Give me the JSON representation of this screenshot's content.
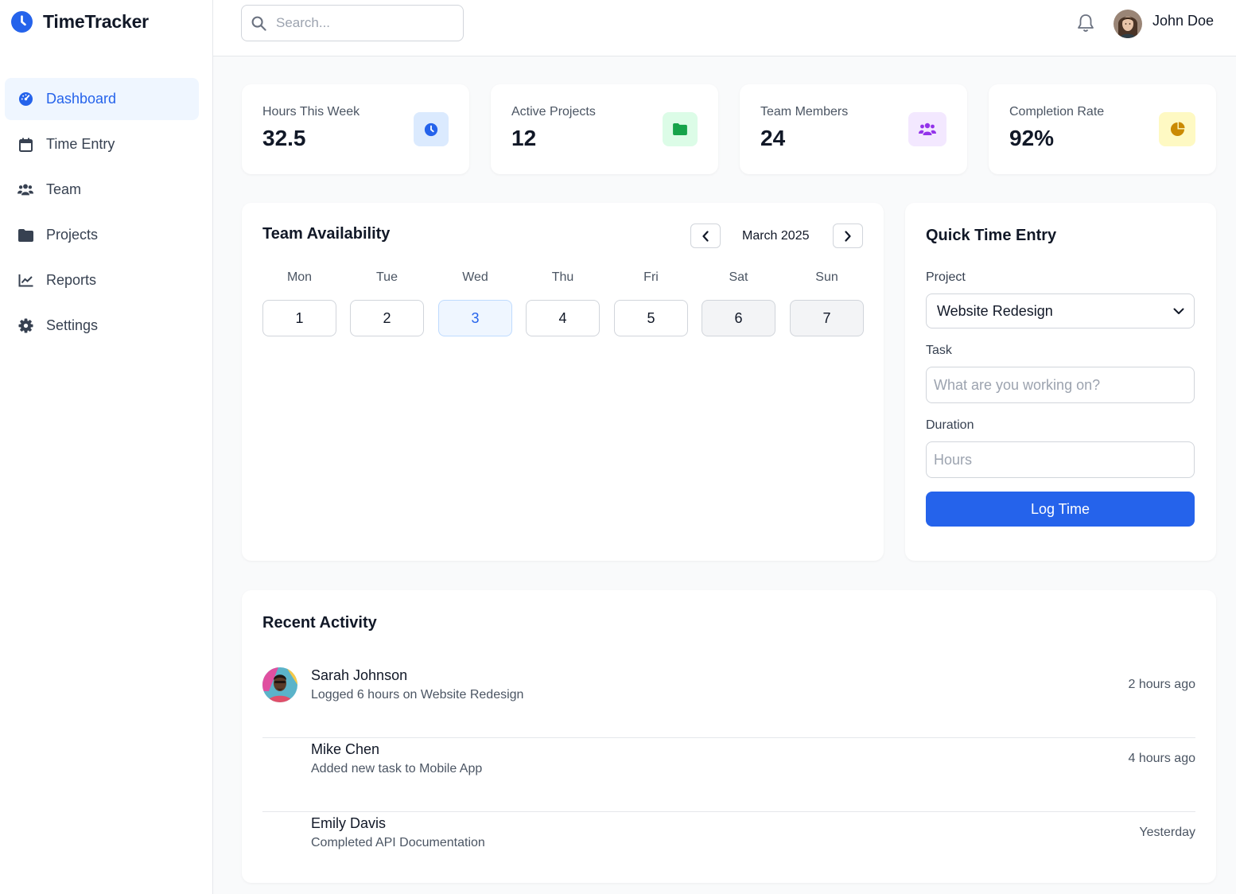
{
  "app": {
    "name": "TimeTracker",
    "accent": "#2563eb"
  },
  "sidebar": {
    "items": [
      {
        "label": "Dashboard",
        "icon": "gauge-icon",
        "active": true
      },
      {
        "label": "Time Entry",
        "icon": "calendar-icon"
      },
      {
        "label": "Team",
        "icon": "users-icon"
      },
      {
        "label": "Projects",
        "icon": "folder-icon"
      },
      {
        "label": "Reports",
        "icon": "line-chart-icon"
      },
      {
        "label": "Settings",
        "icon": "gear-icon"
      }
    ]
  },
  "header": {
    "search_placeholder": "Search...",
    "user_name": "John Doe"
  },
  "stats": [
    {
      "label": "Hours This Week",
      "value": "32.5",
      "icon": "clock-icon",
      "color": "#2563eb",
      "bg": "#dbeafe"
    },
    {
      "label": "Active Projects",
      "value": "12",
      "icon": "folder-icon",
      "color": "#16a34a",
      "bg": "#dcfce7"
    },
    {
      "label": "Team Members",
      "value": "24",
      "icon": "users-icon",
      "color": "#9333ea",
      "bg": "#f3e8ff"
    },
    {
      "label": "Completion Rate",
      "value": "92%",
      "icon": "pie-chart-icon",
      "color": "#ca8a04",
      "bg": "#fef9c3"
    }
  ],
  "availability": {
    "title": "Team Availability",
    "month": "March 2025",
    "weekdays": [
      "Mon",
      "Tue",
      "Wed",
      "Thu",
      "Fri",
      "Sat",
      "Sun"
    ],
    "days": [
      "1",
      "2",
      "3",
      "4",
      "5",
      "6",
      "7"
    ],
    "today": "3"
  },
  "quick_entry": {
    "title": "Quick Time Entry",
    "project_label": "Project",
    "project_value": "Website Redesign",
    "task_label": "Task",
    "task_placeholder": "What are you working on?",
    "duration_label": "Duration",
    "duration_placeholder": "Hours",
    "submit_label": "Log Time"
  },
  "recent_activity": {
    "title": "Recent Activity",
    "items": [
      {
        "name": "Sarah Johnson",
        "desc": "Logged 6 hours on Website Redesign",
        "time": "2 hours ago"
      },
      {
        "name": "Mike Chen",
        "desc": "Added new task to Mobile App",
        "time": "4 hours ago"
      },
      {
        "name": "Emily Davis",
        "desc": "Completed API Documentation",
        "time": "Yesterday"
      }
    ]
  }
}
